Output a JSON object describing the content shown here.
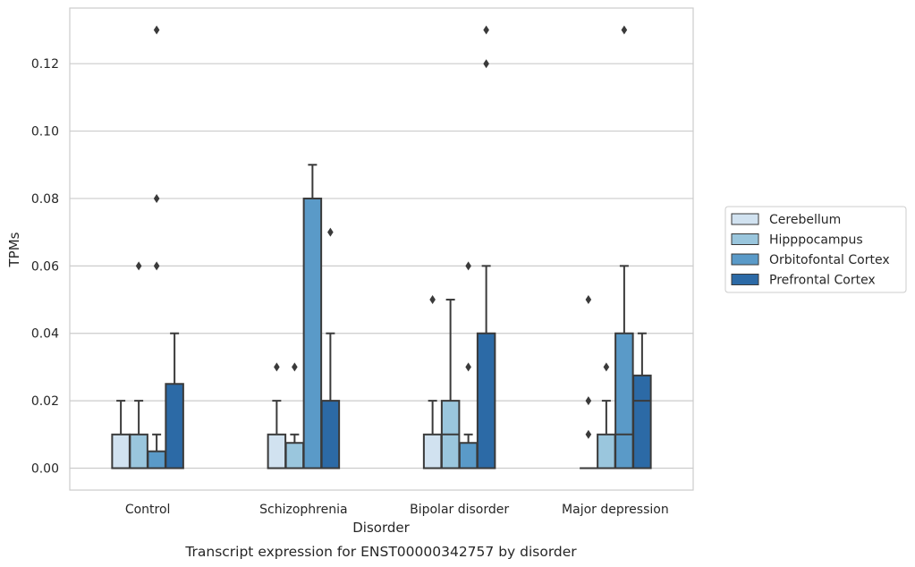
{
  "chart_data": {
    "type": "box",
    "caption": "Transcript expression for ENST00000342757 by disorder",
    "xlabel": "Disorder",
    "ylabel": "TPMs",
    "ylim": [
      -0.0065,
      0.1365
    ],
    "yticks": [
      0.0,
      0.02,
      0.04,
      0.06,
      0.08,
      0.1,
      0.12
    ],
    "ytick_labels": [
      "0.00",
      "0.02",
      "0.04",
      "0.06",
      "0.08",
      "0.10",
      "0.12"
    ],
    "grid": "horizontal",
    "legend_position": "right",
    "categories": [
      "Control",
      "Schizophrenia",
      "Bipolar disorder",
      "Major depression"
    ],
    "series": [
      {
        "name": "Cerebellum",
        "color": "#d1e2f0",
        "boxes": [
          {
            "q1": 0,
            "median": 0,
            "q3": 0.01,
            "whisker_low": 0,
            "whisker_high": 0.02,
            "outliers": []
          },
          {
            "q1": 0,
            "median": 0,
            "q3": 0.01,
            "whisker_low": 0,
            "whisker_high": 0.02,
            "outliers": [
              0.03
            ]
          },
          {
            "q1": 0,
            "median": 0,
            "q3": 0.01,
            "whisker_low": 0,
            "whisker_high": 0.02,
            "outliers": [
              0.05
            ]
          },
          {
            "q1": 0,
            "median": 0,
            "q3": 0,
            "whisker_low": 0,
            "whisker_high": 0,
            "outliers": [
              0.01,
              0.02,
              0.05
            ]
          }
        ]
      },
      {
        "name": "Hipppocampus",
        "color": "#9ac6dd",
        "boxes": [
          {
            "q1": 0,
            "median": 0,
            "q3": 0.01,
            "whisker_low": 0,
            "whisker_high": 0.02,
            "outliers": [
              0.06
            ]
          },
          {
            "q1": 0,
            "median": 0,
            "q3": 0.0075,
            "whisker_low": 0,
            "whisker_high": 0.01,
            "outliers": [
              0.03
            ]
          },
          {
            "q1": 0,
            "median": 0.01,
            "q3": 0.02,
            "whisker_low": 0,
            "whisker_high": 0.05,
            "outliers": []
          },
          {
            "q1": 0,
            "median": 0,
            "q3": 0.01,
            "whisker_low": 0,
            "whisker_high": 0.02,
            "outliers": [
              0.03
            ]
          }
        ]
      },
      {
        "name": "Orbitofontal Cortex",
        "color": "#5a9ac8",
        "boxes": [
          {
            "q1": 0,
            "median": 0,
            "q3": 0.005,
            "whisker_low": 0,
            "whisker_high": 0.01,
            "outliers": [
              0.06,
              0.08,
              0.13
            ]
          },
          {
            "q1": 0,
            "median": 0,
            "q3": 0.08,
            "whisker_low": 0,
            "whisker_high": 0.09,
            "outliers": []
          },
          {
            "q1": 0,
            "median": 0,
            "q3": 0.0075,
            "whisker_low": 0,
            "whisker_high": 0.01,
            "outliers": [
              0.03,
              0.06
            ]
          },
          {
            "q1": 0,
            "median": 0.01,
            "q3": 0.04,
            "whisker_low": 0,
            "whisker_high": 0.06,
            "outliers": [
              0.13
            ]
          }
        ]
      },
      {
        "name": "Prefrontal Cortex",
        "color": "#2c6aa6",
        "boxes": [
          {
            "q1": 0,
            "median": 0,
            "q3": 0.025,
            "whisker_low": 0,
            "whisker_high": 0.04,
            "outliers": []
          },
          {
            "q1": 0,
            "median": 0,
            "q3": 0.02,
            "whisker_low": 0,
            "whisker_high": 0.04,
            "outliers": [
              0.07
            ]
          },
          {
            "q1": 0,
            "median": 0,
            "q3": 0.04,
            "whisker_low": 0,
            "whisker_high": 0.06,
            "outliers": [
              0.12,
              0.13
            ]
          },
          {
            "q1": 0,
            "median": 0.02,
            "q3": 0.0275,
            "whisker_low": 0,
            "whisker_high": 0.04,
            "outliers": []
          }
        ]
      }
    ]
  }
}
